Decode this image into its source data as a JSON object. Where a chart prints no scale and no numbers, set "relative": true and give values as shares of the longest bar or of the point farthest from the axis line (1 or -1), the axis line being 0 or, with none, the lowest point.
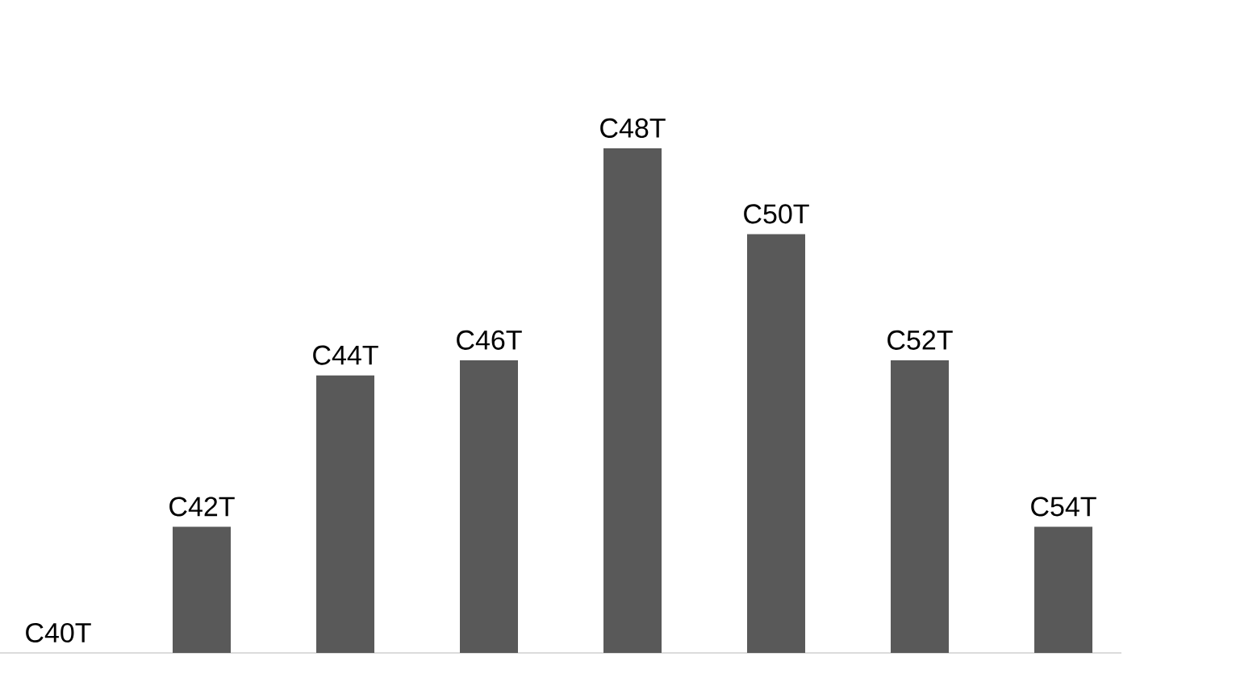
{
  "chart_data": {
    "type": "bar",
    "categories": [
      "C40T",
      "C42T",
      "C44T",
      "C46T",
      "C48T",
      "C50T",
      "C52T",
      "C54T"
    ],
    "values": [
      0,
      0.25,
      0.55,
      0.58,
      1,
      0.83,
      0.58,
      0.25
    ],
    "color": "#595959",
    "relative": true
  }
}
